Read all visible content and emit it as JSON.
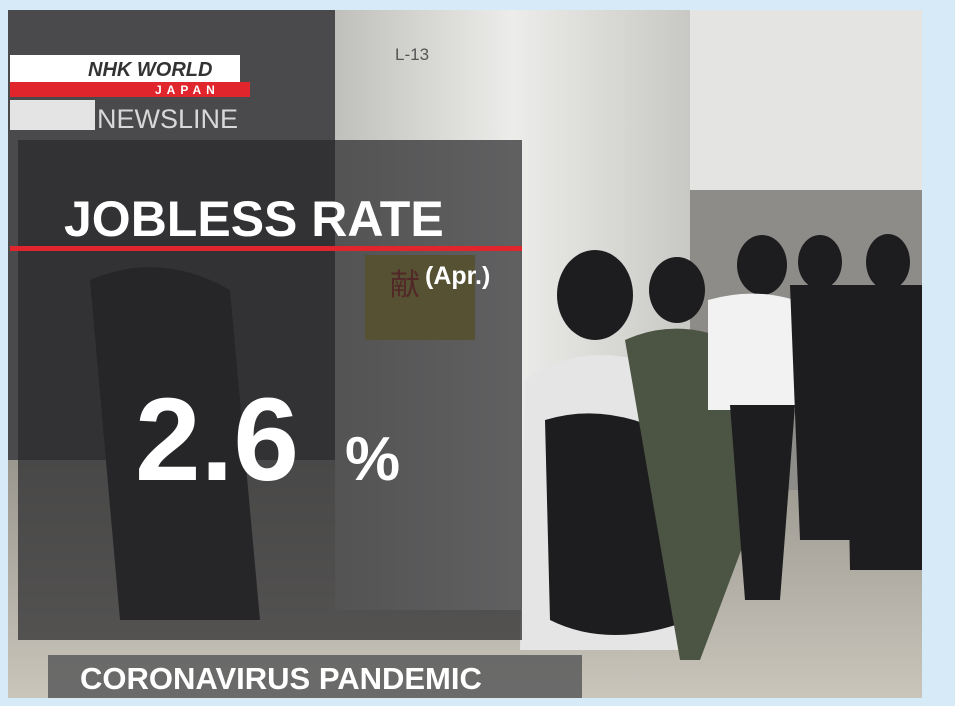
{
  "logo": {
    "brand": "NHK WORLD",
    "region": "JAPAN",
    "program": "NEWSLINE"
  },
  "scene": {
    "pillar_sign": "L-13",
    "wall_sign": "献"
  },
  "graphic": {
    "title": "JOBLESS RATE",
    "period": "(Apr.)",
    "figure": "2.6",
    "unit": "%"
  },
  "banner": "CORONAVIRUS PANDEMIC"
}
